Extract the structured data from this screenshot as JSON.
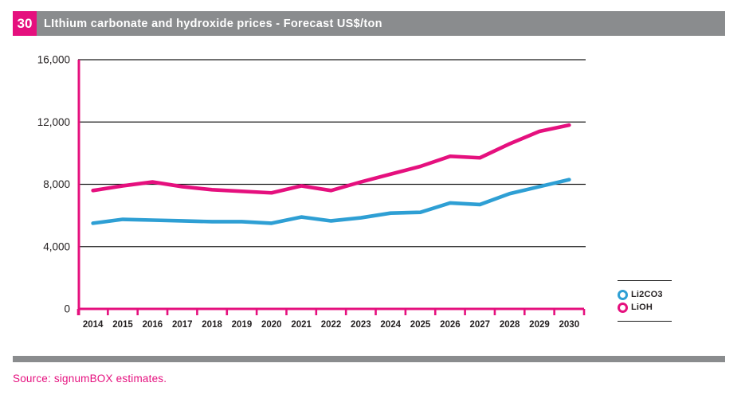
{
  "figure": {
    "number": "30",
    "title": "LIthium carbonate and hydroxide prices - Forecast US$/ton",
    "source": "Source: signumBOX estimates."
  },
  "colors": {
    "magenta": "#e5107e",
    "blue": "#2e9fd4",
    "header_gray": "#8a8c8e",
    "grid_black": "#1a1a1a",
    "text_black": "#231f20"
  },
  "chart_data": {
    "type": "line",
    "x": [
      "2014",
      "2015",
      "2016",
      "2017",
      "2018",
      "2019",
      "2020",
      "2021",
      "2022",
      "2023",
      "2024",
      "2025",
      "2026",
      "2027",
      "2028",
      "2029",
      "2030"
    ],
    "series": [
      {
        "name": "Li2CO3",
        "color": "#2e9fd4",
        "values": [
          5500,
          5750,
          5700,
          5650,
          5600,
          5600,
          5500,
          5900,
          5650,
          5850,
          6150,
          6200,
          6800,
          6700,
          7400,
          7850,
          8300
        ]
      },
      {
        "name": "LiOH",
        "color": "#e5107e",
        "values": [
          7600,
          7900,
          8150,
          7850,
          7650,
          7550,
          7450,
          7900,
          7600,
          8150,
          8650,
          9150,
          9800,
          9700,
          10600,
          11400,
          11800
        ]
      }
    ],
    "title": "LIthium carbonate and hydroxide prices - Forecast US$/ton",
    "xlabel": "",
    "ylabel": "",
    "ylim": [
      0,
      16000
    ],
    "yticks": [
      0,
      4000,
      8000,
      12000,
      16000
    ],
    "ytick_labels": [
      "0",
      "4,000",
      "8,000",
      "12,000",
      "16,000"
    ],
    "grid": "horizontal",
    "legend_entries": [
      "Li2CO3",
      "LiOH"
    ],
    "legend_position": "bottom-right"
  }
}
